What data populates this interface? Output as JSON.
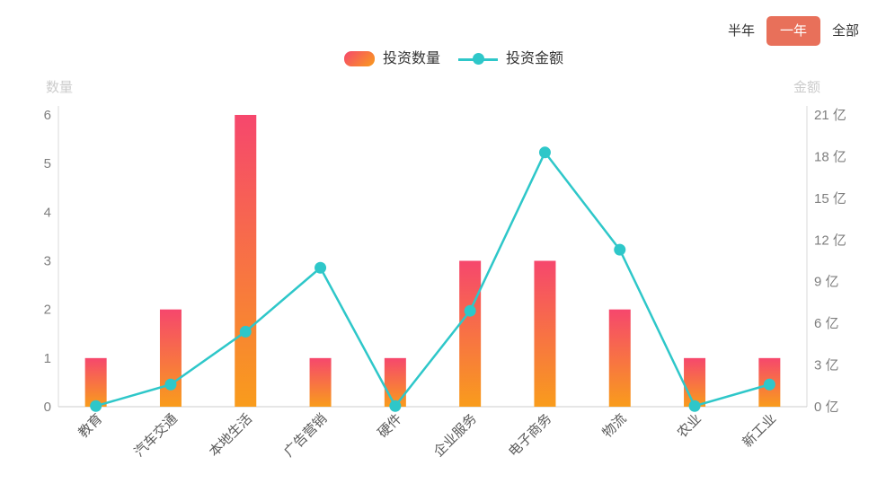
{
  "controls": {
    "options": [
      {
        "label": "半年",
        "selected": false
      },
      {
        "label": "一年",
        "selected": true
      },
      {
        "label": "全部",
        "selected": false
      }
    ]
  },
  "legend": [
    {
      "label": "投资数量",
      "marker": "bar-gradient-swatch"
    },
    {
      "label": "投资金额",
      "marker": "line-dot-swatch"
    }
  ],
  "colors": {
    "bar_gradient_top": "#f6476d",
    "bar_gradient_bottom": "#f99c1c",
    "line": "#2ec7c9",
    "selected_button_bg": "#e8705a",
    "control_text": "#333333",
    "tick_text": "#7e7e7e",
    "x_label_text": "#5a5a5a",
    "axis_name_text": "#cccccc",
    "axis_line": "#d8d8d8",
    "baseline": "#cccccc"
  },
  "chart_data": {
    "type": "bar",
    "subtype": "bar+line dual-axis combo",
    "categories": [
      "教育",
      "汽车交通",
      "本地生活",
      "广告营销",
      "硬件",
      "企业服务",
      "电子商务",
      "物流",
      "农业",
      "新工业"
    ],
    "series": [
      {
        "name": "投资数量",
        "type": "bar",
        "axis": "left",
        "values": [
          1,
          2,
          6,
          1,
          1,
          3,
          3,
          2,
          1,
          1
        ]
      },
      {
        "name": "投资金额",
        "type": "line",
        "axis": "right",
        "unit": "亿",
        "values": [
          0.05,
          1.6,
          5.4,
          10,
          0.05,
          6.9,
          18.3,
          11.3,
          0.05,
          1.6
        ]
      }
    ],
    "left_axis": {
      "name": "数量",
      "min": 0,
      "max": 6,
      "interval": 1
    },
    "right_axis": {
      "name": "金额",
      "min": 0,
      "max": 21,
      "interval": 3,
      "tick_suffix": " 亿"
    },
    "legend_position": "top-center",
    "grid": false,
    "x_label_rotation": 45
  }
}
